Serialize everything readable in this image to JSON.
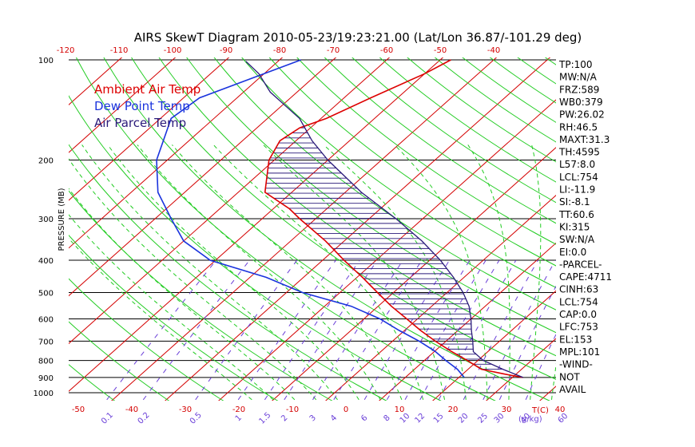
{
  "title": "AIRS SkewT Diagram 2010-05-23/19:23:21.00 (Lat/Lon 36.87/-101.29 deg)",
  "colors": {
    "isotherm": "#d40000",
    "dry_adiabat": "#22cc22",
    "moist_adiabat": "#22cc22",
    "mixing_ratio": "#6a3fd8",
    "isobar": "#000000",
    "ambient": "#dd0000",
    "dewpoint": "#1a33dd",
    "parcel": "#2a1a7a",
    "cape_hatch": "#2a1a7a"
  },
  "chart_data": {
    "type": "line",
    "title": "AIRS SkewT Diagram 2010-05-23/19:23:21.00 (Lat/Lon 36.87/-101.29 deg)",
    "ylabel": "PRESSURE (MB)",
    "bottom_axis_label": "T(C)",
    "mixing_ratio_unit": "(g/kg)",
    "pressure_ticks": [
      100,
      200,
      300,
      400,
      500,
      600,
      700,
      800,
      900,
      1000
    ],
    "bottom_temp_ticks": [
      -50,
      -40,
      -30,
      -20,
      -10,
      0,
      10,
      20,
      30,
      40
    ],
    "top_temp_ticks": [
      -120,
      -110,
      -100,
      -90,
      -80,
      -70,
      -60,
      -50,
      -40
    ],
    "mixing_ratio_ticks": [
      "0.1",
      "0.2",
      "0.5",
      "1",
      "1.5",
      "2",
      "3",
      "4",
      "6",
      "8",
      "10",
      "12",
      "15",
      "20",
      "25",
      "30",
      "40",
      "60"
    ],
    "ylim": [
      1050,
      100
    ],
    "legend": [
      {
        "label": "Ambient Air Temp",
        "key": "ambient"
      },
      {
        "label": "Dew Point Temp",
        "key": "dewpoint"
      },
      {
        "label": "Air Parcel Temp",
        "key": "parcel"
      }
    ],
    "series": [
      {
        "name": "Ambient Air Temp",
        "key": "ambient",
        "points": [
          [
            900,
            32
          ],
          [
            880,
            28
          ],
          [
            850,
            22.5
          ],
          [
            800,
            18
          ],
          [
            750,
            13
          ],
          [
            700,
            8
          ],
          [
            650,
            3
          ],
          [
            600,
            -2
          ],
          [
            550,
            -7.5
          ],
          [
            500,
            -13
          ],
          [
            450,
            -19
          ],
          [
            400,
            -26
          ],
          [
            350,
            -33.5
          ],
          [
            300,
            -43
          ],
          [
            280,
            -47
          ],
          [
            250,
            -55
          ],
          [
            200,
            -61
          ],
          [
            175,
            -63
          ],
          [
            160,
            -62
          ],
          [
            150,
            -59
          ],
          [
            130,
            -55
          ],
          [
            110,
            -50
          ],
          [
            100,
            -48
          ]
        ]
      },
      {
        "name": "Dew Point Temp",
        "key": "dewpoint",
        "points": [
          [
            900,
            21
          ],
          [
            850,
            18
          ],
          [
            800,
            14
          ],
          [
            750,
            10
          ],
          [
            700,
            5
          ],
          [
            650,
            -1
          ],
          [
            600,
            -7
          ],
          [
            550,
            -15
          ],
          [
            500,
            -27
          ],
          [
            450,
            -37
          ],
          [
            400,
            -51
          ],
          [
            350,
            -60
          ],
          [
            300,
            -67
          ],
          [
            250,
            -75
          ],
          [
            200,
            -82
          ],
          [
            150,
            -88
          ],
          [
            130,
            -87
          ],
          [
            110,
            -80
          ],
          [
            100,
            -76
          ]
        ]
      },
      {
        "name": "Air Parcel Temp",
        "key": "parcel",
        "points": [
          [
            900,
            32
          ],
          [
            850,
            26.5
          ],
          [
            800,
            21
          ],
          [
            753,
            17.3
          ],
          [
            700,
            15
          ],
          [
            650,
            12.5
          ],
          [
            600,
            10
          ],
          [
            550,
            7
          ],
          [
            500,
            3
          ],
          [
            450,
            -2
          ],
          [
            400,
            -8
          ],
          [
            350,
            -15.5
          ],
          [
            300,
            -25
          ],
          [
            250,
            -37
          ],
          [
            200,
            -50
          ],
          [
            175,
            -57
          ],
          [
            150,
            -64
          ],
          [
            125,
            -75
          ],
          [
            110,
            -81
          ],
          [
            101,
            -86
          ]
        ]
      }
    ],
    "indices": [
      "TP:100",
      "MW:N/A",
      "FRZ:589",
      "WB0:379",
      "PW:26.02",
      "RH:46.5",
      "MAXT:31.3",
      "TH:4595",
      "L57:8.0",
      "LCL:754",
      "LI:-11.9",
      "SI:-8.1",
      "TT:60.6",
      "KI:315",
      "SW:N/A",
      "EI:0.0",
      "-PARCEL-",
      "CAPE:4711",
      "CINH:63",
      "LCL:754",
      "CAP:0.0",
      "LFC:753",
      "EL:153",
      "MPL:101",
      "-WIND-",
      "NOT",
      "AVAIL"
    ]
  }
}
